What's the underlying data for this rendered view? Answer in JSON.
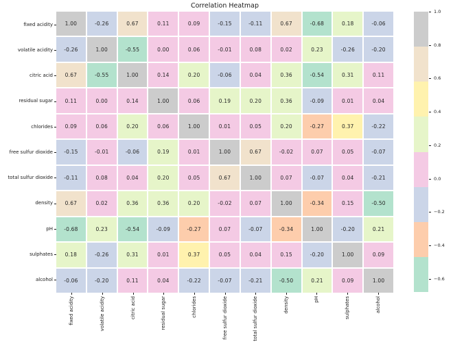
{
  "figure": {
    "background": "#ffffff"
  },
  "chart_data": {
    "type": "heatmap",
    "title": "Correlation Heatmap",
    "categories": [
      "fixed acidity",
      "volatile acidity",
      "citric acid",
      "residual sugar",
      "chlorides",
      "free sulfur dioxide",
      "total sulfur dioxide",
      "density",
      "pH",
      "sulphates",
      "alcohol"
    ],
    "matrix": [
      [
        1.0,
        -0.26,
        0.67,
        0.11,
        0.09,
        -0.15,
        -0.11,
        0.67,
        -0.68,
        0.18,
        -0.06
      ],
      [
        -0.26,
        1.0,
        -0.55,
        0.0,
        0.06,
        -0.01,
        0.08,
        0.02,
        0.23,
        -0.26,
        -0.2
      ],
      [
        0.67,
        -0.55,
        1.0,
        0.14,
        0.2,
        -0.06,
        0.04,
        0.36,
        -0.54,
        0.31,
        0.11
      ],
      [
        0.11,
        0.0,
        0.14,
        1.0,
        0.06,
        0.19,
        0.2,
        0.36,
        -0.09,
        0.01,
        0.04
      ],
      [
        0.09,
        0.06,
        0.2,
        0.06,
        1.0,
        0.01,
        0.05,
        0.2,
        -0.27,
        0.37,
        -0.22
      ],
      [
        -0.15,
        -0.01,
        -0.06,
        0.19,
        0.01,
        1.0,
        0.67,
        -0.02,
        0.07,
        0.05,
        -0.07
      ],
      [
        -0.11,
        0.08,
        0.04,
        0.2,
        0.05,
        0.67,
        1.0,
        0.07,
        -0.07,
        0.04,
        -0.21
      ],
      [
        0.67,
        0.02,
        0.36,
        0.36,
        0.2,
        -0.02,
        0.07,
        1.0,
        -0.34,
        0.15,
        -0.5
      ],
      [
        -0.68,
        0.23,
        -0.54,
        -0.09,
        -0.27,
        0.07,
        -0.07,
        -0.34,
        1.0,
        -0.2,
        0.21
      ],
      [
        0.18,
        -0.26,
        0.31,
        0.01,
        0.37,
        0.05,
        0.04,
        0.15,
        -0.2,
        1.0,
        0.09
      ],
      [
        -0.06,
        -0.2,
        0.11,
        0.04,
        -0.22,
        -0.07,
        -0.21,
        -0.5,
        0.21,
        0.09,
        1.0
      ]
    ],
    "value_decimals": 2,
    "vmin": -0.68,
    "vmax": 1.0,
    "palette": {
      "name": "Pastel2",
      "colors": [
        "#b3e2cd",
        "#fdcdac",
        "#cbd5e8",
        "#f4cae4",
        "#e6f5c9",
        "#fff2ae",
        "#f1e2cc",
        "#cccccc"
      ]
    },
    "grid_line_color": "#ffffff",
    "annotation_color": "#262626",
    "colorbar": {
      "position": "right",
      "tick_labels": [
        "1.0",
        "0.8",
        "0.6",
        "0.4",
        "0.2",
        "0.0",
        "−0.2",
        "−0.4",
        "−0.6"
      ],
      "tick_values": [
        1.0,
        0.8,
        0.6,
        0.4,
        0.2,
        0.0,
        -0.2,
        -0.4,
        -0.6
      ]
    },
    "legend": "none",
    "grid": "off"
  }
}
